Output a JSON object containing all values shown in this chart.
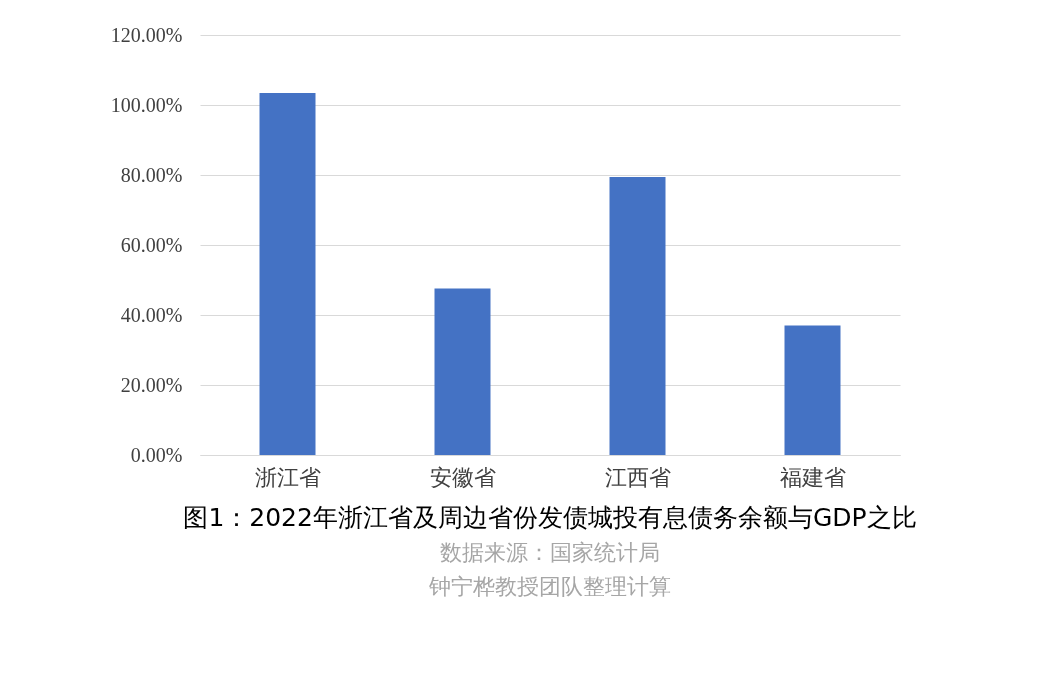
{
  "chart_data": {
    "type": "bar",
    "title": "图1：2022年浙江省及周边省份发债城投有息债务余额与GDP之比",
    "annotations": [
      "数据来源：国家统计局",
      "钟宁桦教授团队整理计算"
    ],
    "categories": [
      "浙江省",
      "安徽省",
      "江西省",
      "福建省"
    ],
    "values": [
      103.4,
      47.6,
      79.4,
      37.0
    ],
    "color": "#4472c4",
    "ylim": [
      0,
      120
    ],
    "yticks": [
      {
        "value": 0,
        "label": "0.00%"
      },
      {
        "value": 20,
        "label": "20.00%"
      },
      {
        "value": 40,
        "label": "40.00%"
      },
      {
        "value": 60,
        "label": "60.00%"
      },
      {
        "value": 80,
        "label": "80.00%"
      },
      {
        "value": 100,
        "label": "100.00%"
      },
      {
        "value": 120,
        "label": "120.00%"
      }
    ],
    "grid": "y"
  }
}
